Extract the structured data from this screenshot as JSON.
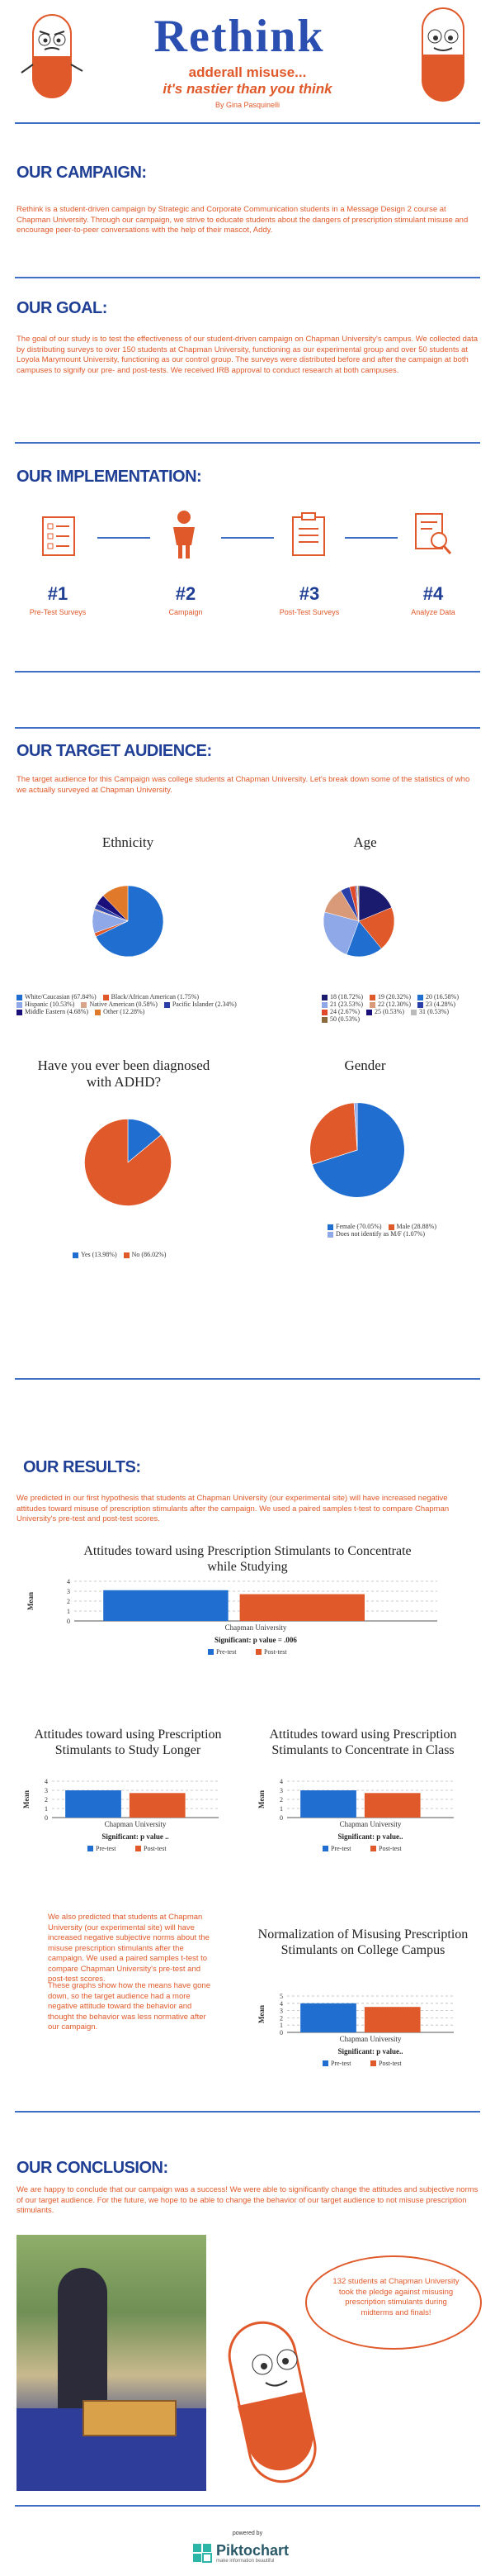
{
  "colors": {
    "accent": "#e0592a",
    "brand": "#1f3f95",
    "blue": "#1f6ed0"
  },
  "header": {
    "title": "Rethink",
    "tagline_1": "adderall misuse...",
    "tagline_2": "it's nastier than you think",
    "author": "By Gina Pasquinelli"
  },
  "campaign": {
    "heading": "OUR CAMPAIGN:",
    "text": "Rethink is a student-driven campaign by Strategic and Corporate Communication students in a Message Design 2 course at Chapman University. Through our campaign, we strive to educate students about the dangers of prescription stimulant misuse and encourage peer-to-peer conversations with the help of their mascot, Addy."
  },
  "goal": {
    "heading": "OUR GOAL:",
    "text": "The goal of our study is to test the effectiveness of our student-driven campaign on Chapman University's campus. We collected data by distributing surveys to over 150 students at Chapman University, functioning as our experimental group and over 50 students at Loyola Marymount University, functioning as our control group. The surveys were distributed before and after the campaign at both campuses to signify our pre- and post-tests. We received IRB approval to conduct research at both campuses."
  },
  "implementation": {
    "heading": "OUR IMPLEMENTATION:",
    "steps": [
      {
        "num": "#1",
        "label": "Pre-Test Surveys",
        "icon": "survey-icon"
      },
      {
        "num": "#2",
        "label": "Campaign",
        "icon": "person-icon"
      },
      {
        "num": "#3",
        "label": "Post-Test Surveys",
        "icon": "clipboard-icon"
      },
      {
        "num": "#4",
        "label": "Analyze Data",
        "icon": "magnifier-document-icon"
      }
    ]
  },
  "audience": {
    "heading": "OUR TARGET AUDIENCE:",
    "text": "The target audience for this Campaign was college students at Chapman University. Let's break down some of the statistics of who we actually surveyed at Chapman University."
  },
  "pies": [
    {
      "title": "Ethnicity",
      "slices": [
        {
          "label": "White/Caucasian (67.84%)",
          "value": 67.84,
          "color": "#1f6ed0"
        },
        {
          "label": "Black/African American (1.75%)",
          "value": 1.75,
          "color": "#e0592a"
        },
        {
          "label": "Hispanic (10.53%)",
          "value": 10.53,
          "color": "#8fa8e8"
        },
        {
          "label": "Native American (0.58%)",
          "value": 0.58,
          "color": "#d9a58a"
        },
        {
          "label": "Pacific Islander (2.34%)",
          "value": 2.34,
          "color": "#2a3fa8"
        },
        {
          "label": "Middle Eastern (4.68%)",
          "value": 4.68,
          "color": "#1a0e7a"
        },
        {
          "label": "Other (12.28%)",
          "value": 12.28,
          "color": "#e07a2a"
        }
      ]
    },
    {
      "title": "Age",
      "slices": [
        {
          "label": "18 (18.72%)",
          "value": 18.72,
          "color": "#1a1a6e"
        },
        {
          "label": "19 (20.32%)",
          "value": 20.32,
          "color": "#e0592a"
        },
        {
          "label": "20 (16.58%)",
          "value": 16.58,
          "color": "#1f6ed0"
        },
        {
          "label": "21 (23.53%)",
          "value": 23.53,
          "color": "#8fa8e8"
        },
        {
          "label": "22 (12.30%)",
          "value": 12.3,
          "color": "#d99a7a"
        },
        {
          "label": "23 (4.28%)",
          "value": 4.28,
          "color": "#2a3fa8"
        },
        {
          "label": "24 (2.67%)",
          "value": 2.67,
          "color": "#e04a2a"
        },
        {
          "label": "25 (0.53%)",
          "value": 0.53,
          "color": "#1a0e7a"
        },
        {
          "label": "31 (0.53%)",
          "value": 0.53,
          "color": "#bbbbbb"
        },
        {
          "label": "50 (0.53%)",
          "value": 0.53,
          "color": "#8a6a3a"
        }
      ]
    },
    {
      "title": "Have you ever been diagnosed with ADHD?",
      "slices": [
        {
          "label": "Yes (13.98%)",
          "value": 13.98,
          "color": "#1f6ed0"
        },
        {
          "label": "No (86.02%)",
          "value": 86.02,
          "color": "#e0592a"
        }
      ]
    },
    {
      "title": "Gender",
      "slices": [
        {
          "label": "Female (70.05%)",
          "value": 70.05,
          "color": "#1f6ed0"
        },
        {
          "label": "Male (28.88%)",
          "value": 28.88,
          "color": "#e0592a"
        },
        {
          "label": "Does not identify as M/F (1.07%)",
          "value": 1.07,
          "color": "#8fa8e8"
        }
      ]
    }
  ],
  "results": {
    "heading": "OUR RESULTS:",
    "text": "We predicted in our first hypothesis that students at Chapman University (our experimental site) will have increased negative attitudes toward misuse of prescription stimulants after the campaign. We used a paired samples t-test to compare Chapman University's pre-test and post-test scores.",
    "side_text_1": "We also predicted that students at Chapman University (our experimental site) will have increased negative subjective norms about the misuse prescription stimulants after the campaign. We used a paired samples t-test to compare Chapman University's pre-test and post-test scores.",
    "side_text_2": "These graphs show how the means have gone down, so the target audience had a more negative attitude toward the behavior and thought the behavior was less normative after our campaign."
  },
  "chart_data": [
    {
      "type": "bar",
      "title": "Attitudes toward using Prescription Stimulants to Concentrate while Studying",
      "categories": [
        "Chapman University"
      ],
      "series": [
        {
          "name": "Pre-test",
          "values": [
            3.1
          ]
        },
        {
          "name": "Post-test",
          "values": [
            2.7
          ]
        }
      ],
      "ylabel": "Mean",
      "ylim": [
        0,
        4
      ],
      "yticks": [
        "0",
        "1",
        "2",
        "3",
        "4"
      ],
      "note": "Significant: p value = .006"
    },
    {
      "type": "bar",
      "title": "Attitudes toward using Prescription Stimulants to Study Longer",
      "categories": [
        "Chapman University"
      ],
      "series": [
        {
          "name": "Pre-test",
          "values": [
            3.0
          ]
        },
        {
          "name": "Post-test",
          "values": [
            2.7
          ]
        }
      ],
      "ylabel": "Mean",
      "ylim": [
        0,
        4
      ],
      "yticks": [
        "0",
        "1",
        "2",
        "3",
        "4"
      ],
      "note": "Significant: p value .."
    },
    {
      "type": "bar",
      "title": "Attitudes toward using Prescription Stimulants to Concentrate in Class",
      "categories": [
        "Chapman University"
      ],
      "series": [
        {
          "name": "Pre-test",
          "values": [
            3.0
          ]
        },
        {
          "name": "Post-test",
          "values": [
            2.7
          ]
        }
      ],
      "ylabel": "Mean",
      "ylim": [
        0,
        4
      ],
      "yticks": [
        "0",
        "1",
        "2",
        "3",
        "4"
      ],
      "note": "Significant: p value.."
    },
    {
      "type": "bar",
      "title": "Normalization of Misusing Prescription Stimulants on College Campus",
      "categories": [
        "Chapman University"
      ],
      "series": [
        {
          "name": "Pre-test",
          "values": [
            4.0
          ]
        },
        {
          "name": "Post-test",
          "values": [
            3.5
          ]
        }
      ],
      "ylabel": "Mean",
      "ylim": [
        0,
        5
      ],
      "yticks": [
        "0",
        "1",
        "2",
        "3",
        "4",
        "5"
      ],
      "note": "Significant: p value.."
    }
  ],
  "conclusion": {
    "heading": "OUR CONCLUSION:",
    "text": "We are happy to conclude that our campaign was a success! We were able to significantly change the attitudes and subjective norms of our target audience. For the future, we hope to be able to change the behavior of our target audience to not misuse prescription stimulants.",
    "bubble": "132 students at Chapman University took the pledge against misusing prescription stimulants during midterms and finals!"
  },
  "footer": {
    "powered": "powered by",
    "brand": "Piktochart",
    "tag": "make information beautiful"
  }
}
